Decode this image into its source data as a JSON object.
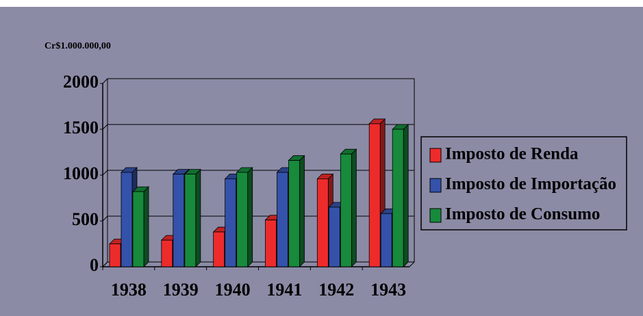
{
  "chart_data": {
    "type": "bar3d",
    "ylabel": "Cr$1.000.000,00",
    "categories": [
      "1938",
      "1939",
      "1940",
      "1941",
      "1942",
      "1943"
    ],
    "series": [
      {
        "name": "Imposto de Renda",
        "color": "#ee2b2b",
        "values": [
          250,
          290,
          380,
          510,
          960,
          1560
        ]
      },
      {
        "name": "Imposto de Importação",
        "color": "#3452aa",
        "values": [
          1030,
          1010,
          960,
          1030,
          650,
          580
        ]
      },
      {
        "name": "Imposto de Consumo",
        "color": "#178a3c",
        "values": [
          820,
          1010,
          1030,
          1160,
          1230,
          1500
        ]
      }
    ],
    "ylim": [
      0,
      2000
    ],
    "yticks": [
      0,
      500,
      1000,
      1500,
      2000
    ],
    "grid": true
  }
}
